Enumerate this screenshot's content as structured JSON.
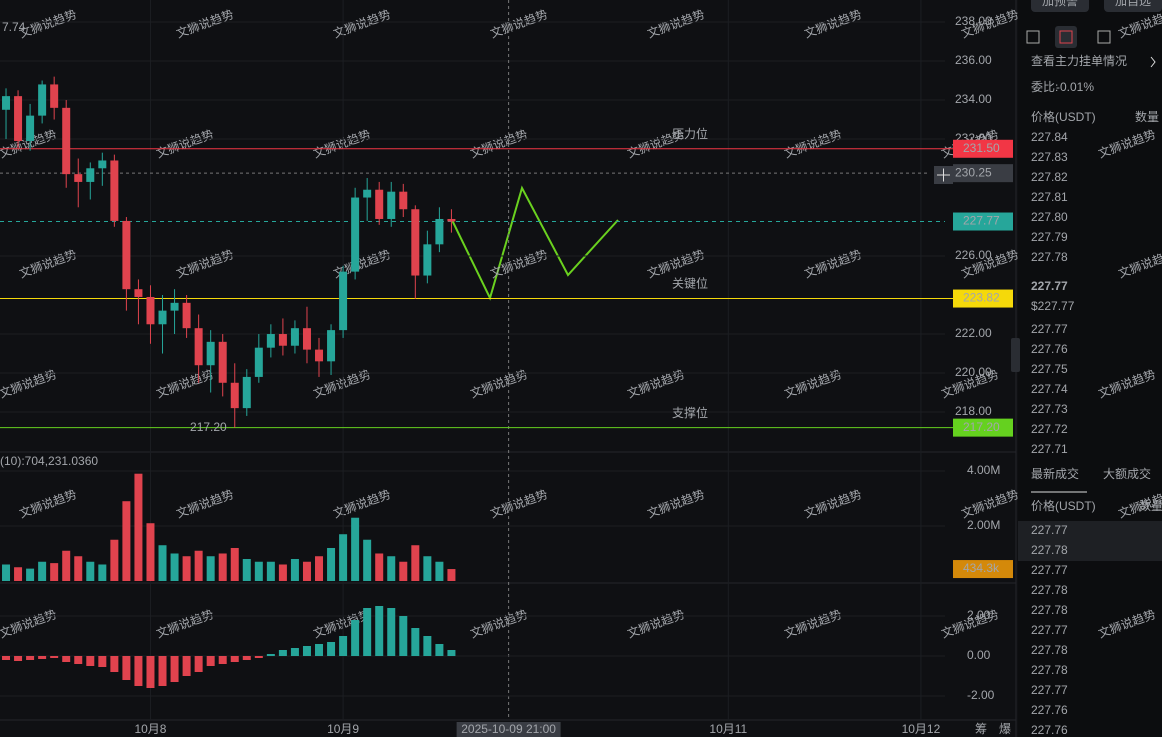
{
  "chart_data": [
    {
      "type": "candlestick",
      "top_left_text": "7.74",
      "xlim": [
        -0.5,
        78
      ],
      "ylim": [
        215.95,
        239.13
      ],
      "xticks": [
        {
          "value": 12,
          "label": "10月8"
        },
        {
          "value": 28,
          "label": "10月9"
        },
        {
          "value": 60,
          "label": "10月11"
        },
        {
          "value": 76,
          "label": "10月12"
        }
      ],
      "yticks": [
        {
          "value": 238,
          "label": "238.00"
        },
        {
          "value": 236,
          "label": "236.00"
        },
        {
          "value": 234,
          "label": "234.00"
        },
        {
          "value": 232,
          "label": "232.00"
        },
        {
          "value": 226,
          "label": "226.00"
        },
        {
          "value": 222,
          "label": "222.00"
        },
        {
          "value": 220,
          "label": "220.00"
        },
        {
          "value": 218,
          "label": "218.00"
        }
      ],
      "up_color": "#26a69a",
      "down_color": "#e0434e",
      "open": [
        233.5,
        234.2,
        231.9,
        233.2,
        234.8,
        233.6,
        230.2,
        229.8,
        230.5,
        230.9,
        227.8,
        224.3,
        223.9,
        222.5,
        223.2,
        223.6,
        222.3,
        220.4,
        221.6,
        219.5,
        218.2,
        219.8,
        221.3,
        222.0,
        221.4,
        222.3,
        221.2,
        220.6,
        222.2,
        225.2,
        229.0,
        229.4,
        227.9,
        229.3,
        228.4,
        225.0,
        226.6,
        227.9
      ],
      "high": [
        234.6,
        234.5,
        233.8,
        235.0,
        235.2,
        234.0,
        231.0,
        230.8,
        231.3,
        231.2,
        228.0,
        224.8,
        224.5,
        224.0,
        224.3,
        224.0,
        223.0,
        222.2,
        222.0,
        220.5,
        220.2,
        222.0,
        222.5,
        222.8,
        222.7,
        223.4,
        221.8,
        222.5,
        225.5,
        229.5,
        230.0,
        229.8,
        229.8,
        229.7,
        228.6,
        227.3,
        228.5,
        228.4
      ],
      "low": [
        232.0,
        231.5,
        231.4,
        232.8,
        233.0,
        229.5,
        228.5,
        228.9,
        229.6,
        227.5,
        223.2,
        222.5,
        221.5,
        221.0,
        222.0,
        221.8,
        219.5,
        219.0,
        218.8,
        217.2,
        217.8,
        219.5,
        220.8,
        220.9,
        221.0,
        220.5,
        219.8,
        219.9,
        221.8,
        224.8,
        227.8,
        227.6,
        227.5,
        228.0,
        223.8,
        224.6,
        226.2,
        227.2
      ],
      "close": [
        234.2,
        231.9,
        233.2,
        234.8,
        233.6,
        230.2,
        229.8,
        230.5,
        230.9,
        227.8,
        224.3,
        223.9,
        222.5,
        223.2,
        223.6,
        222.3,
        220.4,
        221.6,
        219.5,
        218.2,
        219.8,
        221.3,
        222.0,
        221.4,
        222.3,
        221.2,
        220.6,
        222.2,
        225.2,
        229.0,
        229.4,
        227.9,
        229.3,
        228.4,
        225.0,
        226.6,
        227.9,
        227.77
      ],
      "levels": [
        {
          "value": 231.5,
          "label": "231.50",
          "text": "压力位",
          "color": "#f23645"
        },
        {
          "value": 223.82,
          "label": "223.82",
          "text": "关键位",
          "color": "#f5d90a"
        },
        {
          "value": 217.2,
          "label": "217.20",
          "text": "支撑位",
          "color": "#65d11f"
        }
      ],
      "current": {
        "value": 227.77,
        "label": "227.77",
        "color": "#26a69a"
      },
      "crosshair": {
        "x": 41.75,
        "x_label": "2025-10-09 21:00",
        "y": 230.25,
        "y_label": "230.25"
      },
      "low_marker": {
        "x": 19,
        "value": 217.2,
        "label": "217.20"
      },
      "watermark": "文狮说趋势",
      "toolbar": [
        "筹",
        "爆"
      ]
    },
    {
      "type": "bar",
      "indicator_label": "(10):704,231.0360",
      "ylim": [
        0,
        4580000
      ],
      "yticks": [
        {
          "value": 2000000,
          "label": "2.00M"
        },
        {
          "value": 4000000,
          "label": "4.00M"
        }
      ],
      "values": [
        600000,
        500000,
        450000,
        700000,
        650000,
        1100000,
        900000,
        700000,
        600000,
        1500000,
        2900000,
        3900000,
        2100000,
        1300000,
        1000000,
        900000,
        1100000,
        900000,
        1000000,
        1200000,
        800000,
        700000,
        700000,
        600000,
        800000,
        700000,
        900000,
        1200000,
        1700000,
        2300000,
        1500000,
        1000000,
        900000,
        700000,
        1300000,
        900000,
        700000,
        434300
      ],
      "last": {
        "value": 434300,
        "label": "434.3k",
        "color": "#d4890a"
      }
    },
    {
      "type": "bar",
      "ylim": [
        -3.0,
        3.6
      ],
      "yticks": [
        {
          "value": 2,
          "label": "2.00"
        },
        {
          "value": 0,
          "label": "0.00"
        },
        {
          "value": -2,
          "label": "-2.00"
        }
      ],
      "values": [
        -0.2,
        -0.25,
        -0.2,
        -0.15,
        -0.1,
        -0.3,
        -0.4,
        -0.5,
        -0.55,
        -0.8,
        -1.2,
        -1.5,
        -1.6,
        -1.5,
        -1.3,
        -1.0,
        -0.8,
        -0.5,
        -0.4,
        -0.3,
        -0.2,
        -0.1,
        0.1,
        0.3,
        0.4,
        0.5,
        0.6,
        0.7,
        1.0,
        1.8,
        2.4,
        2.5,
        2.4,
        2.0,
        1.4,
        1.0,
        0.6,
        0.3
      ]
    }
  ],
  "sidebar": {
    "buttons": [
      "加预警",
      "加自选"
    ],
    "link": "查看主力挂单情况",
    "ratio_label": "委比:",
    "ratio_value": "-0.01%",
    "book_header": [
      "价格(USDT)",
      "数量"
    ],
    "asks": [
      "227.84",
      "227.83",
      "227.82",
      "227.81",
      "227.80",
      "227.79",
      "227.78"
    ],
    "last_price": "227.77",
    "last_price_usd": "$227.77",
    "bids": [
      "227.77",
      "227.76",
      "227.75",
      "227.74",
      "227.73",
      "227.72",
      "227.71"
    ],
    "tabs": [
      "最新成交",
      "大额成交"
    ],
    "trades_header": [
      "价格(USDT)",
      "数量"
    ],
    "trades": [
      {
        "price": "227.77",
        "color": "#e0434e"
      },
      {
        "price": "227.78",
        "color": "#26a69a"
      },
      {
        "price": "227.77",
        "color": "#e0434e"
      },
      {
        "price": "227.78",
        "color": "#26a69a"
      },
      {
        "price": "227.78",
        "color": "#26a69a"
      },
      {
        "price": "227.77",
        "color": "#e0434e"
      },
      {
        "price": "227.78",
        "color": "#26a69a"
      },
      {
        "price": "227.78",
        "color": "#26a69a"
      },
      {
        "price": "227.77",
        "color": "#26a69a"
      },
      {
        "price": "227.76",
        "color": "#e0434e"
      },
      {
        "price": "227.76",
        "color": "#e0434e"
      }
    ]
  }
}
